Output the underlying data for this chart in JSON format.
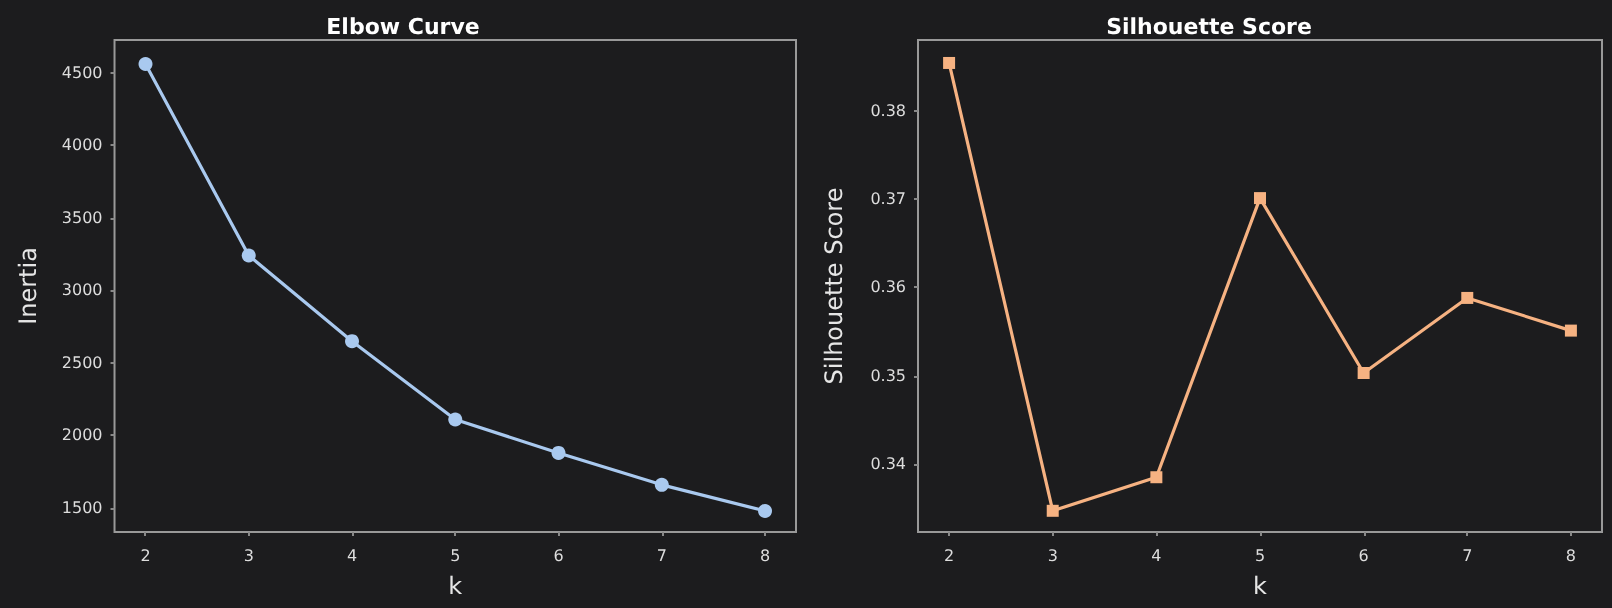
{
  "chart_data": [
    {
      "type": "line",
      "title": "Elbow Curve",
      "xlabel": "k",
      "ylabel": "Inertia",
      "x": [
        2,
        3,
        4,
        5,
        6,
        7,
        8
      ],
      "series": [
        {
          "color": "#a9c9ef",
          "values": [
            4560,
            3240,
            2650,
            2110,
            1880,
            1660,
            1480
          ]
        }
      ],
      "xlim": [
        1.7,
        8.3
      ],
      "xticks": [
        2,
        3,
        4,
        5,
        6,
        7,
        8
      ],
      "ylim": [
        1335,
        4725
      ],
      "yticks": [
        1500,
        2000,
        2500,
        3000,
        3500,
        4000,
        4500
      ],
      "grid": false,
      "marker": "circle",
      "line_style": "solid"
    },
    {
      "type": "line",
      "title": "Silhouette Score",
      "xlabel": "k",
      "ylabel": "Silhouette Score",
      "x": [
        2,
        3,
        4,
        5,
        6,
        7,
        8
      ],
      "series": [
        {
          "color": "#f6b282",
          "values": [
            0.3854,
            0.3347,
            0.3385,
            0.3701,
            0.3503,
            0.3588,
            0.3551
          ]
        }
      ],
      "xlim": [
        1.7,
        8.3
      ],
      "xticks": [
        2,
        3,
        4,
        5,
        6,
        7,
        8
      ],
      "ylim": [
        0.3323,
        0.388
      ],
      "yticks": [
        0.34,
        0.35,
        0.36,
        0.37,
        0.38
      ],
      "grid": false,
      "marker": "square",
      "line_style": "solid"
    }
  ]
}
